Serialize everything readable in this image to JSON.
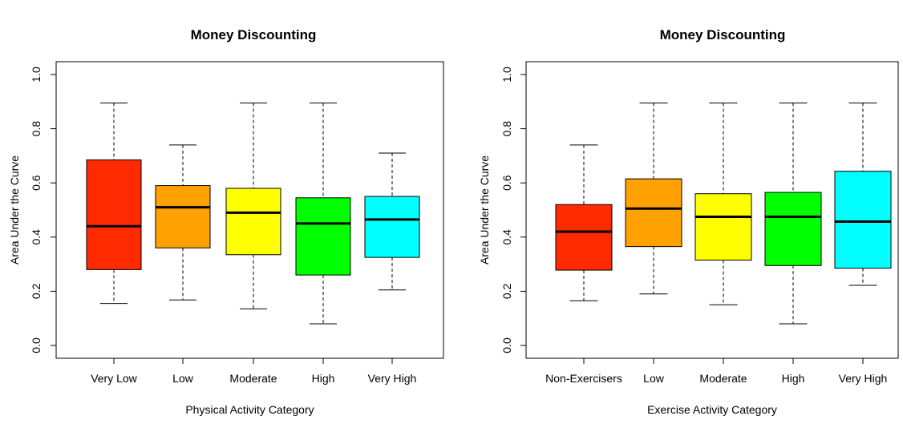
{
  "chart_data": [
    {
      "type": "boxplot",
      "title": "Money Discounting",
      "xlabel": "Physical Activity Category",
      "ylabel": "Area Under the Curve",
      "ylim": [
        0.0,
        1.0
      ],
      "yticks": [
        "0.0",
        "0.2",
        "0.4",
        "0.6",
        "0.8",
        "1.0"
      ],
      "grid": false,
      "categories": [
        "Very Low",
        "Low",
        "Moderate",
        "High",
        "Very High"
      ],
      "colors": [
        "#ff2a00",
        "#ffa100",
        "#ffff00",
        "#00ff00",
        "#00ffff"
      ],
      "boxes": [
        {
          "min": 0.155,
          "q1": 0.28,
          "median": 0.44,
          "q3": 0.685,
          "max": 0.895
        },
        {
          "min": 0.168,
          "q1": 0.36,
          "median": 0.51,
          "q3": 0.59,
          "max": 0.74
        },
        {
          "min": 0.135,
          "q1": 0.335,
          "median": 0.49,
          "q3": 0.58,
          "max": 0.895
        },
        {
          "min": 0.08,
          "q1": 0.26,
          "median": 0.45,
          "q3": 0.545,
          "max": 0.895
        },
        {
          "min": 0.205,
          "q1": 0.325,
          "median": 0.465,
          "q3": 0.55,
          "max": 0.71
        }
      ]
    },
    {
      "type": "boxplot",
      "title": "Money Discounting",
      "xlabel": "Exercise Activity Category",
      "ylabel": "Area Under the Curve",
      "ylim": [
        0.0,
        1.0
      ],
      "yticks": [
        "0.0",
        "0.2",
        "0.4",
        "0.6",
        "0.8",
        "1.0"
      ],
      "grid": false,
      "categories": [
        "Non-Exercisers",
        "Low",
        "Moderate",
        "High",
        "Very High"
      ],
      "colors": [
        "#ff2a00",
        "#ffa100",
        "#ffff00",
        "#00ff00",
        "#00ffff"
      ],
      "boxes": [
        {
          "min": 0.165,
          "q1": 0.278,
          "median": 0.42,
          "q3": 0.52,
          "max": 0.74
        },
        {
          "min": 0.19,
          "q1": 0.365,
          "median": 0.505,
          "q3": 0.615,
          "max": 0.895
        },
        {
          "min": 0.15,
          "q1": 0.315,
          "median": 0.475,
          "q3": 0.56,
          "max": 0.895
        },
        {
          "min": 0.08,
          "q1": 0.295,
          "median": 0.475,
          "q3": 0.565,
          "max": 0.895
        },
        {
          "min": 0.222,
          "q1": 0.285,
          "median": 0.457,
          "q3": 0.643,
          "max": 0.895
        }
      ]
    }
  ]
}
